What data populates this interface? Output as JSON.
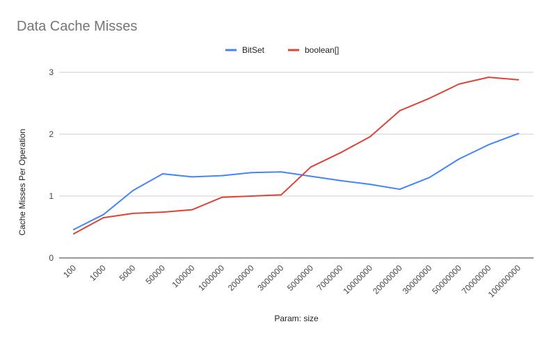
{
  "chart_data": {
    "type": "line",
    "title": "Data Cache Misses",
    "xlabel": "Param: size",
    "ylabel": "Cache Misses Per Operation",
    "categories": [
      "100",
      "1000",
      "5000",
      "50000",
      "100000",
      "1000000",
      "2000000",
      "3000000",
      "5000000",
      "7000000",
      "10000000",
      "20000000",
      "30000000",
      "50000000",
      "70000000",
      "100000000"
    ],
    "series": [
      {
        "name": "BitSet",
        "color": "#4285f4",
        "values": [
          0.46,
          0.7,
          1.09,
          1.36,
          1.31,
          1.33,
          1.38,
          1.39,
          1.32,
          1.25,
          1.19,
          1.11,
          1.3,
          1.6,
          1.83,
          2.01
        ]
      },
      {
        "name": "boolean[]",
        "color": "#db4437",
        "values": [
          0.39,
          0.65,
          0.72,
          0.74,
          0.78,
          0.98,
          1.0,
          1.02,
          1.47,
          1.7,
          1.96,
          2.38,
          2.58,
          2.81,
          2.92,
          2.88
        ]
      }
    ],
    "ylim": [
      0,
      3
    ],
    "yticks": [
      0,
      1,
      2,
      3
    ],
    "grid": true,
    "legend_position": "top-center"
  }
}
